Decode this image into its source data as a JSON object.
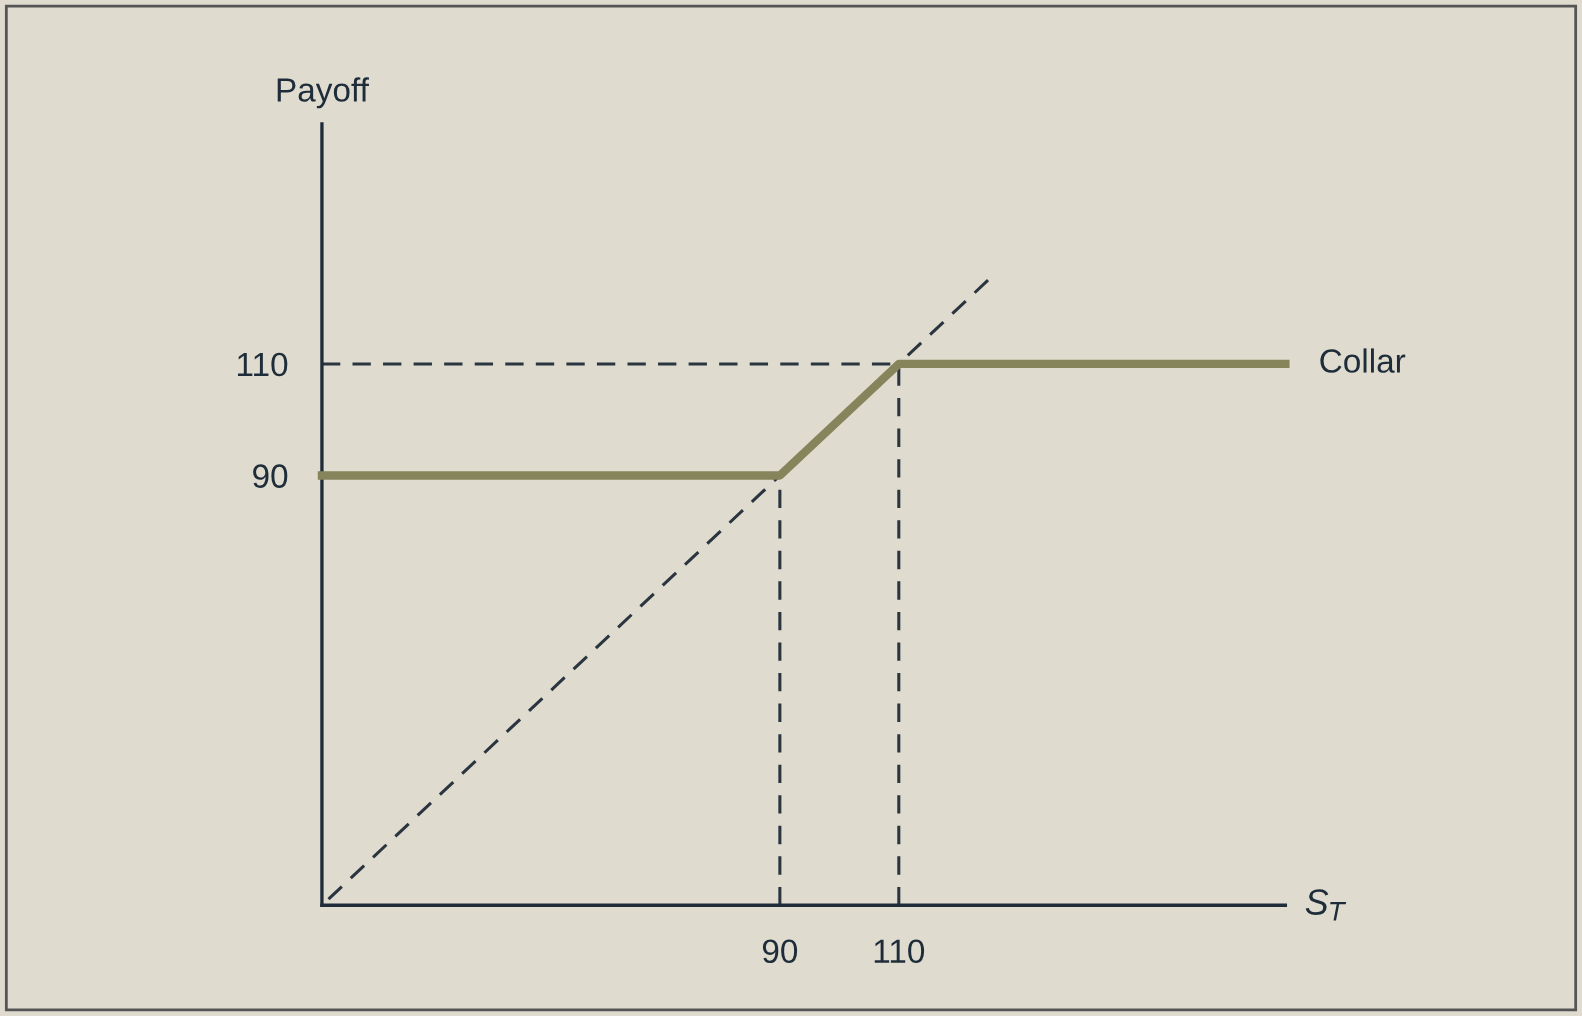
{
  "chart_data": {
    "type": "line",
    "xlabel": "S$_{T}$",
    "ylabel": "Payoff",
    "xlim": [
      13,
      175
    ],
    "ylim": [
      13,
      153
    ],
    "xticks": [
      90,
      110
    ],
    "yticks": [
      90,
      110
    ],
    "grid": false,
    "legend": false,
    "marker": "none",
    "series": [
      {
        "name": "Collar",
        "color": "#85845a",
        "x": [
          13,
          90,
          110,
          175
        ],
        "values": [
          90,
          90,
          110,
          110
        ],
        "line_style": "solid"
      },
      {
        "color": "#2a3540",
        "x": [
          125,
          13
        ],
        "values": [
          125,
          13
        ],
        "line_style": "dashed"
      },
      {
        "color": "#2a3540",
        "x": [
          13,
          110
        ],
        "values": [
          110,
          110
        ],
        "line_style": "dashed"
      },
      {
        "color": "#2a3540",
        "x": [
          90,
          90
        ],
        "values": [
          13,
          90
        ],
        "line_style": "dashed"
      },
      {
        "color": "#2a3540",
        "x": [
          110,
          110
        ],
        "values": [
          13,
          110
        ],
        "line_style": "dashed"
      }
    ]
  }
}
